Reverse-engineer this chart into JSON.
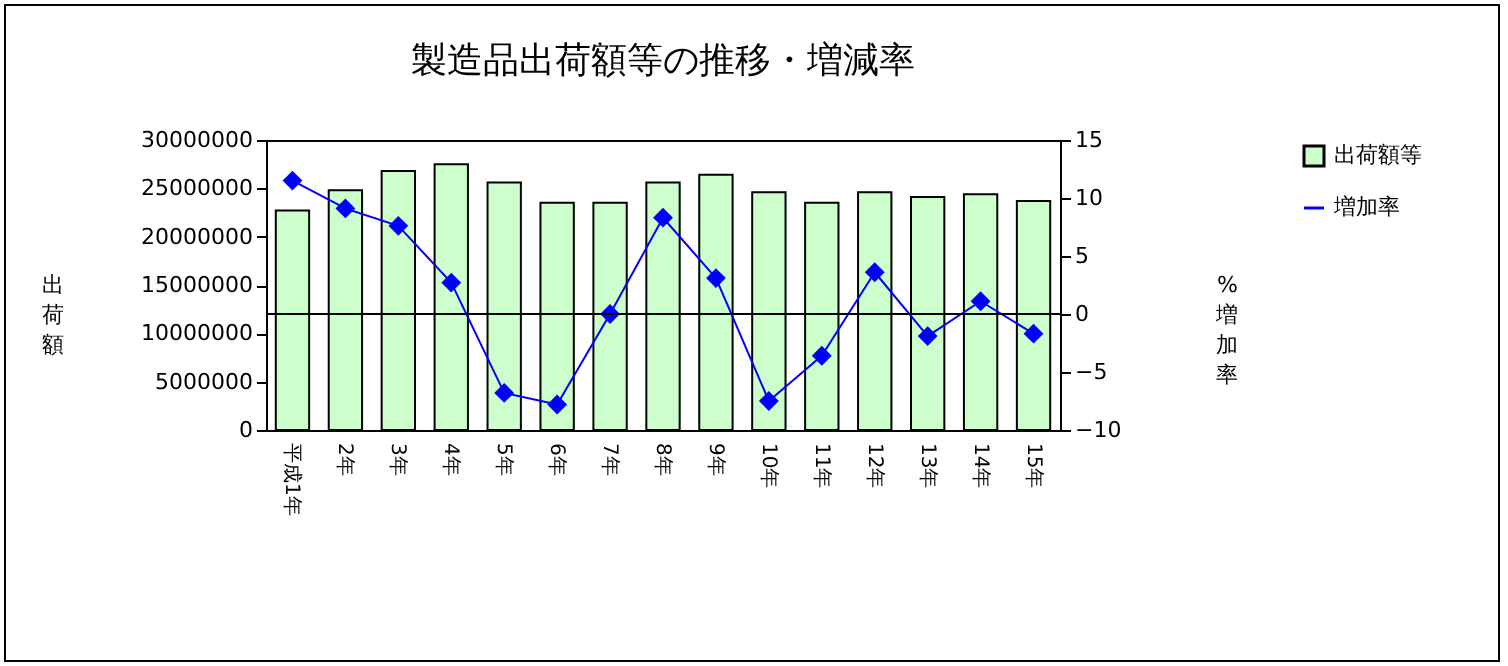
{
  "chart_data": {
    "type": "bar",
    "title": "製造品出荷額等の推移・増減率",
    "ylabel": "出荷額",
    "y2label": "%増加率",
    "categories": [
      "平成1年",
      "2年",
      "3年",
      "4年",
      "5年",
      "6年",
      "7年",
      "8年",
      "9年",
      "10年",
      "11年",
      "12年",
      "13年",
      "14年",
      "15年"
    ],
    "series": [
      {
        "name": "出荷額等",
        "color": "#ccffcc",
        "values": [
          22700000,
          24800000,
          26800000,
          27500000,
          25600000,
          23500000,
          23500000,
          25600000,
          26400000,
          24600000,
          23500000,
          24600000,
          24100000,
          24400000,
          23700000
        ]
      },
      {
        "name": "増加率",
        "type": "line",
        "axis": "y2",
        "color": "#0000ff",
        "values": [
          11.5,
          9.1,
          7.6,
          2.7,
          -6.8,
          -7.8,
          0,
          8.3,
          3.1,
          -7.5,
          -3.6,
          3.6,
          -1.9,
          1.1,
          -1.7
        ]
      }
    ],
    "ylim": [
      0,
      30000000
    ],
    "yticks": [
      0,
      5000000,
      10000000,
      15000000,
      20000000,
      25000000,
      30000000
    ],
    "y2lim": [
      -10,
      15
    ],
    "y2ticks": [
      -10,
      -5,
      0,
      5,
      10,
      15
    ],
    "ref_lines": [
      {
        "axis": "y2",
        "value": 0,
        "color": "#000000"
      }
    ],
    "marker": "diamond",
    "legend": "right",
    "grid": false
  }
}
